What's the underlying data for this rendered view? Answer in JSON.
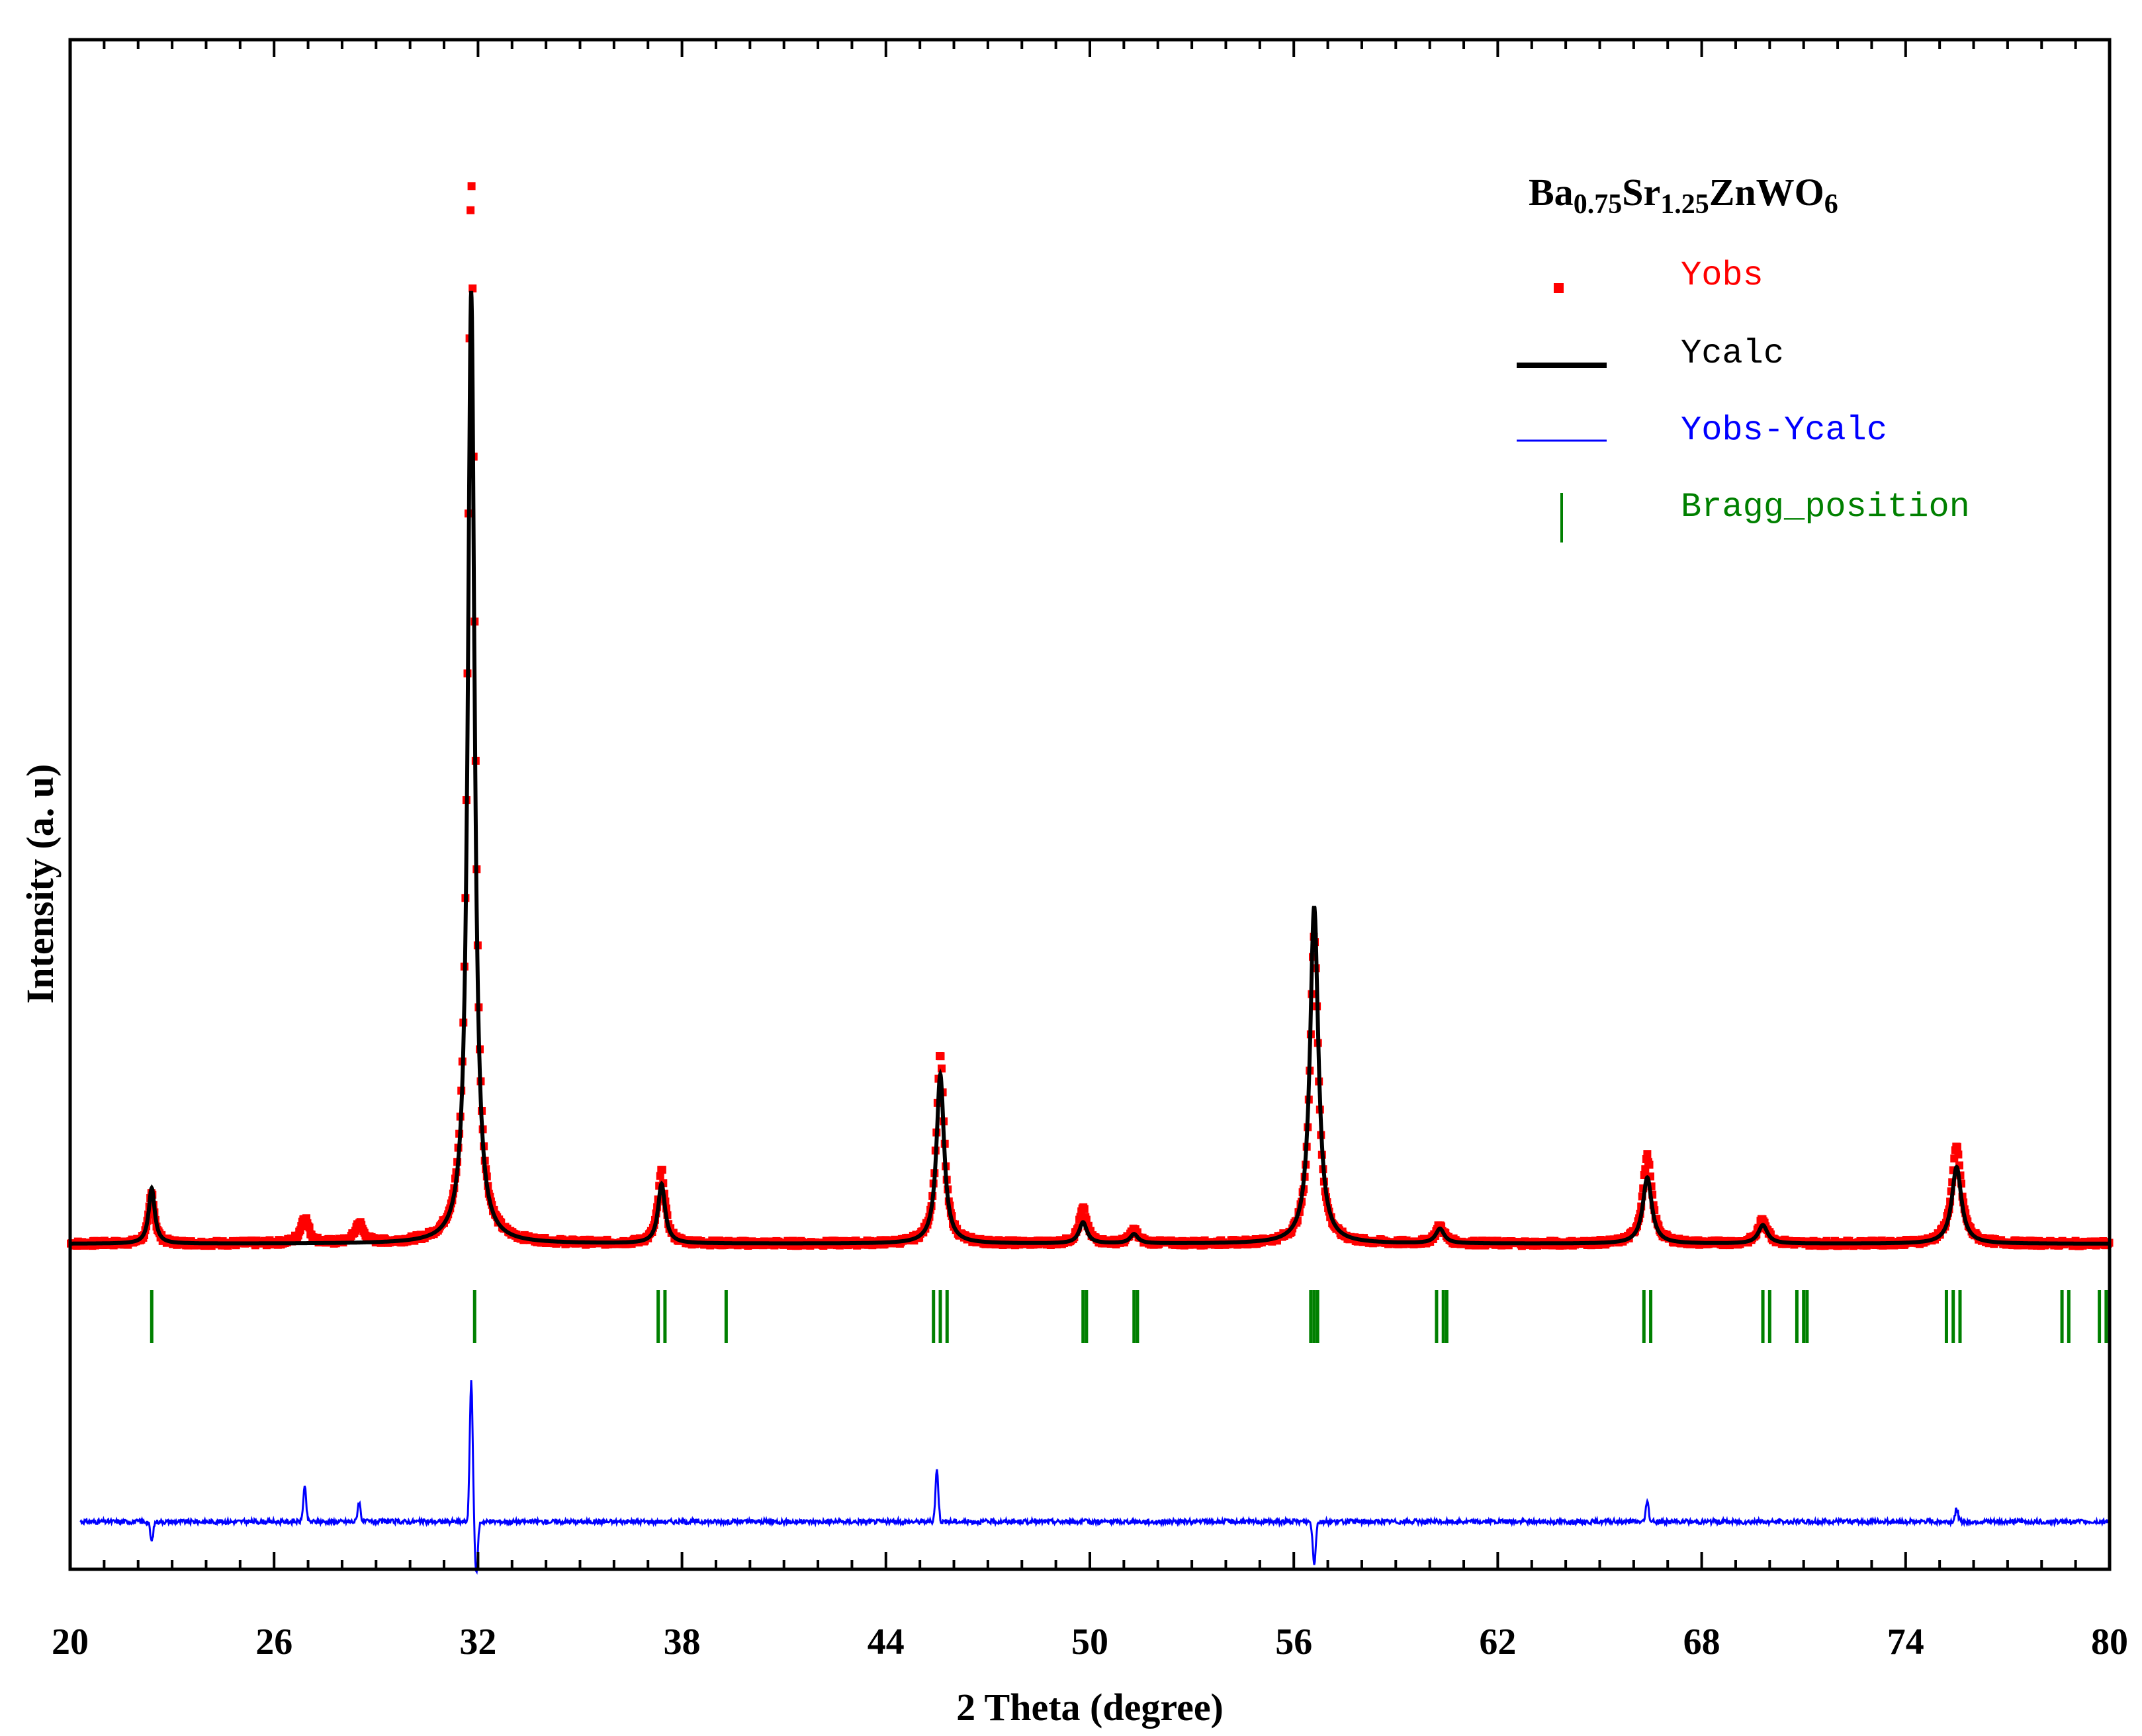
{
  "chart_data": {
    "type": "line",
    "xlabel": "2 Theta (degree)",
    "ylabel": "Intensity (a. u)",
    "xlim": [
      20,
      80
    ],
    "x_ticks": [
      20,
      26,
      32,
      38,
      44,
      50,
      56,
      62,
      68,
      74,
      80
    ],
    "y_ticks": [],
    "annotation": {
      "main": [
        "Ba",
        "Sr",
        "ZnWO"
      ],
      "subs": [
        "0.75",
        "1.25",
        "6"
      ]
    },
    "legend_position": "top-right",
    "series": [
      {
        "name": "Yobs",
        "color": "#ff0000",
        "style": "points"
      },
      {
        "name": "Ycalc",
        "color": "#000000",
        "style": "line"
      },
      {
        "name": "Yobs-Ycalc",
        "color": "#0000ff",
        "style": "line"
      },
      {
        "name": "Bragg_position",
        "color": "#008000",
        "style": "ticks"
      }
    ],
    "background_intensity": 1.0,
    "peaks": [
      {
        "two_theta": 22.4,
        "ycalc": 4.2,
        "yobs": 3.8
      },
      {
        "two_theta": 31.8,
        "ycalc": 72.0,
        "yobs": 80.5
      },
      {
        "two_theta": 37.4,
        "ycalc": 4.5,
        "yobs": 5.5
      },
      {
        "two_theta": 45.6,
        "ycalc": 12.8,
        "yobs": 14.3
      },
      {
        "two_theta": 49.8,
        "ycalc": 1.6,
        "yobs": 2.6
      },
      {
        "two_theta": 51.3,
        "ycalc": 0.7,
        "yobs": 1.0
      },
      {
        "two_theta": 56.6,
        "ycalc": 25.5,
        "yobs": 23.3
      },
      {
        "two_theta": 60.3,
        "ycalc": 1.1,
        "yobs": 1.3
      },
      {
        "two_theta": 66.4,
        "ycalc": 5.0,
        "yobs": 6.6
      },
      {
        "two_theta": 69.8,
        "ycalc": 1.4,
        "yobs": 1.8
      },
      {
        "two_theta": 75.5,
        "ycalc": 5.8,
        "yobs": 7.3
      }
    ],
    "impurity_peaks": [
      {
        "two_theta": 26.9,
        "yobs": 2.0
      },
      {
        "two_theta": 28.5,
        "yobs": 1.5
      }
    ],
    "bragg_positions": [
      22.4,
      31.9,
      37.3,
      37.5,
      39.3,
      45.4,
      45.6,
      45.8,
      49.8,
      49.9,
      51.3,
      51.4,
      56.5,
      56.6,
      56.7,
      60.2,
      60.4,
      60.5,
      66.3,
      66.5,
      69.8,
      70.0,
      70.8,
      71.0,
      71.1,
      75.2,
      75.4,
      75.6,
      78.6,
      78.8,
      79.7,
      79.9
    ],
    "difference_features": [
      {
        "two_theta": 22.4,
        "value": -1.5
      },
      {
        "two_theta": 26.9,
        "value": 2.6
      },
      {
        "two_theta": 28.5,
        "value": 1.5
      },
      {
        "two_theta": 31.8,
        "value": 10.7
      },
      {
        "two_theta": 31.95,
        "value": -4.0
      },
      {
        "two_theta": 45.5,
        "value": 3.9
      },
      {
        "two_theta": 56.6,
        "value": -3.2
      },
      {
        "two_theta": 66.4,
        "value": 1.5
      },
      {
        "two_theta": 75.5,
        "value": 1.0
      }
    ]
  }
}
